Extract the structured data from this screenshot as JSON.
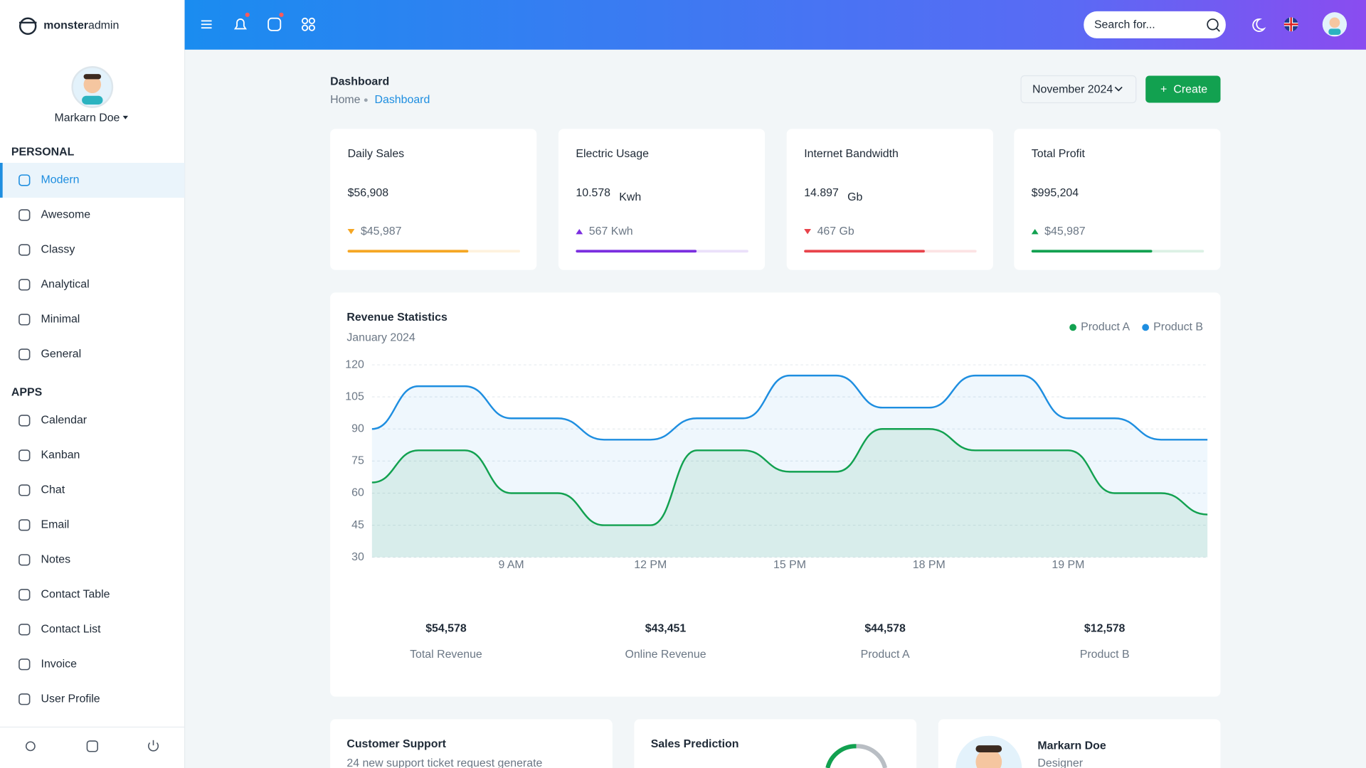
{
  "brand": {
    "bold": "monster",
    "light": "admin"
  },
  "sidebar": {
    "user": "Markarn Doe",
    "sections": [
      {
        "title": "PERSONAL",
        "items": [
          "Modern",
          "Awesome",
          "Classy",
          "Analytical",
          "Minimal",
          "General"
        ]
      },
      {
        "title": "APPS",
        "items": [
          "Calendar",
          "Kanban",
          "Chat",
          "Email",
          "Notes",
          "Contact Table",
          "Contact List",
          "Invoice",
          "User Profile"
        ]
      }
    ]
  },
  "topbar": {
    "search": "Search for..."
  },
  "header": {
    "title": "Dashboard",
    "breadcrumb": [
      "Home",
      "Dashboard"
    ],
    "period": "November 2024",
    "action": "Create"
  },
  "stats": [
    {
      "title": "Daily Sales",
      "value": "$56,908",
      "delta": "$45,987",
      "trend": "down",
      "progress": 70,
      "color": "#f5a623"
    },
    {
      "title": "Electric Usage",
      "value": "10.578",
      "unit": "Kwh",
      "delta": "567 Kwh",
      "trend": "up",
      "progress": 70,
      "color": "#7b2ee0"
    },
    {
      "title": "Internet Bandwidth",
      "value": "14.897",
      "unit": "Gb",
      "delta": "467 Gb",
      "trend": "down",
      "progress": 70,
      "color": "#e8434b"
    },
    {
      "title": "Total Profit",
      "value": "$995,204",
      "delta": "$45,987",
      "trend": "up",
      "progress": 70,
      "color": "#12a150"
    }
  ],
  "chart_data": {
    "type": "area",
    "title": "Revenue Statistics",
    "subtitle": "January 2024",
    "categories": [
      null,
      null,
      null,
      "9 AM",
      null,
      null,
      "12 PM",
      null,
      null,
      "15 PM",
      null,
      null,
      "18 PM",
      null,
      null,
      "19 PM",
      null,
      null,
      null
    ],
    "series": [
      {
        "name": "Product A",
        "color": "#12a150",
        "values": [
          65,
          80,
          80,
          60,
          60,
          45,
          45,
          80,
          80,
          70,
          70,
          90,
          90,
          80,
          80,
          80,
          60,
          60,
          50
        ]
      },
      {
        "name": "Product B",
        "color": "#1e8ee0",
        "values": [
          90,
          110,
          110,
          95,
          95,
          85,
          85,
          95,
          95,
          115,
          115,
          100,
          100,
          115,
          115,
          95,
          95,
          85,
          85
        ]
      }
    ],
    "ylim": [
      30,
      120
    ],
    "yticks": [
      30,
      45,
      60,
      75,
      90,
      105,
      120
    ],
    "grid": true,
    "legend": "top-right"
  },
  "summary": [
    {
      "value": "$54,578",
      "label": "Total Revenue"
    },
    {
      "value": "$43,451",
      "label": "Online Revenue"
    },
    {
      "value": "$44,578",
      "label": "Product A"
    },
    {
      "value": "$12,578",
      "label": "Product B"
    }
  ],
  "bottom": {
    "support": {
      "title": "Customer Support",
      "subtitle": "24 new support ticket request generate"
    },
    "prediction": {
      "title": "Sales Prediction"
    },
    "profile": {
      "name": "Markarn Doe",
      "role": "Designer"
    }
  }
}
